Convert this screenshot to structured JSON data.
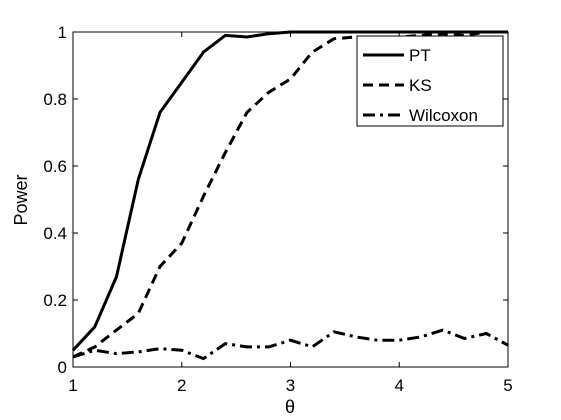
{
  "chart_data": {
    "type": "line",
    "title": "",
    "xlabel": "θ",
    "ylabel": "Power",
    "xlim": [
      1,
      5
    ],
    "ylim": [
      0,
      1
    ],
    "xticks": [
      1,
      2,
      3,
      4,
      5
    ],
    "yticks": [
      0,
      0.2,
      0.4,
      0.6,
      0.8,
      1
    ],
    "xtick_labels": [
      "1",
      "2",
      "3",
      "4",
      "5"
    ],
    "ytick_labels": [
      "0",
      "0.2",
      "0.4",
      "0.6",
      "0.8",
      "1"
    ],
    "grid": false,
    "legend_position": "top-right",
    "x": [
      1.0,
      1.2,
      1.4,
      1.6,
      1.8,
      2.0,
      2.2,
      2.4,
      2.6,
      2.8,
      3.0,
      3.2,
      3.4,
      3.6,
      3.8,
      4.0,
      4.2,
      4.4,
      4.6,
      4.8,
      5.0
    ],
    "series": [
      {
        "name": "PT",
        "style": "solid",
        "color": "#000000",
        "values": [
          0.05,
          0.12,
          0.27,
          0.56,
          0.76,
          0.85,
          0.94,
          0.99,
          0.985,
          0.995,
          1.0,
          1.0,
          1.0,
          1.0,
          1.0,
          1.0,
          1.0,
          1.0,
          1.0,
          1.0,
          1.0
        ]
      },
      {
        "name": "KS",
        "style": "dashed",
        "color": "#000000",
        "values": [
          0.03,
          0.06,
          0.11,
          0.16,
          0.3,
          0.37,
          0.51,
          0.64,
          0.76,
          0.82,
          0.86,
          0.94,
          0.98,
          0.985,
          0.98,
          0.985,
          0.99,
          0.995,
          0.99,
          1.0,
          1.0
        ]
      },
      {
        "name": "Wilcoxon",
        "style": "dashdot",
        "color": "#000000",
        "values": [
          0.03,
          0.05,
          0.04,
          0.045,
          0.055,
          0.05,
          0.025,
          0.07,
          0.06,
          0.06,
          0.08,
          0.06,
          0.105,
          0.09,
          0.08,
          0.08,
          0.09,
          0.11,
          0.085,
          0.1,
          0.065
        ]
      }
    ]
  }
}
